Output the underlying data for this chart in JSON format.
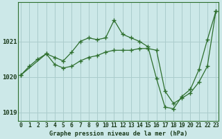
{
  "title": "Graphe pression niveau de la mer (hPa)",
  "background_color": "#cce8e8",
  "grid_color": "#aacccc",
  "line_color": "#2d6e2d",
  "marker_color": "#2d6e2d",
  "x_data1": [
    0,
    1,
    2,
    3,
    4,
    5,
    6,
    7,
    8,
    9,
    10,
    11,
    12,
    13,
    14,
    15,
    16,
    17,
    18,
    19,
    20,
    21,
    22,
    23
  ],
  "y_data1": [
    1020.05,
    1020.3,
    1020.5,
    1020.65,
    1020.55,
    1020.45,
    1020.7,
    1021.0,
    1021.1,
    1021.05,
    1021.1,
    1021.6,
    1021.2,
    1021.1,
    1021.0,
    1020.85,
    1019.95,
    1019.15,
    1019.1,
    1019.45,
    1019.65,
    1020.2,
    1021.05,
    1021.85
  ],
  "x_data2": [
    0,
    3,
    4,
    5,
    6,
    7,
    8,
    9,
    10,
    11,
    12,
    13,
    14,
    15,
    16,
    17,
    18,
    19,
    20,
    21,
    22,
    23
  ],
  "y_data2": [
    1020.05,
    1020.65,
    1020.35,
    1020.25,
    1020.3,
    1020.45,
    1020.55,
    1020.6,
    1020.7,
    1020.75,
    1020.75,
    1020.75,
    1020.8,
    1020.8,
    1020.75,
    1019.6,
    1019.25,
    1019.4,
    1019.55,
    1019.85,
    1020.3,
    1021.85
  ],
  "ylim": [
    1018.75,
    1022.1
  ],
  "yticks": [
    1019.0,
    1020.0,
    1021.0
  ],
  "xlim": [
    -0.3,
    23.3
  ],
  "xticks": [
    0,
    1,
    2,
    3,
    4,
    5,
    6,
    7,
    8,
    9,
    10,
    11,
    12,
    13,
    14,
    15,
    16,
    17,
    18,
    19,
    20,
    21,
    22,
    23
  ],
  "tick_fontsize": 5.8,
  "label_fontsize": 6.2,
  "ytick_fontsize": 6.5
}
